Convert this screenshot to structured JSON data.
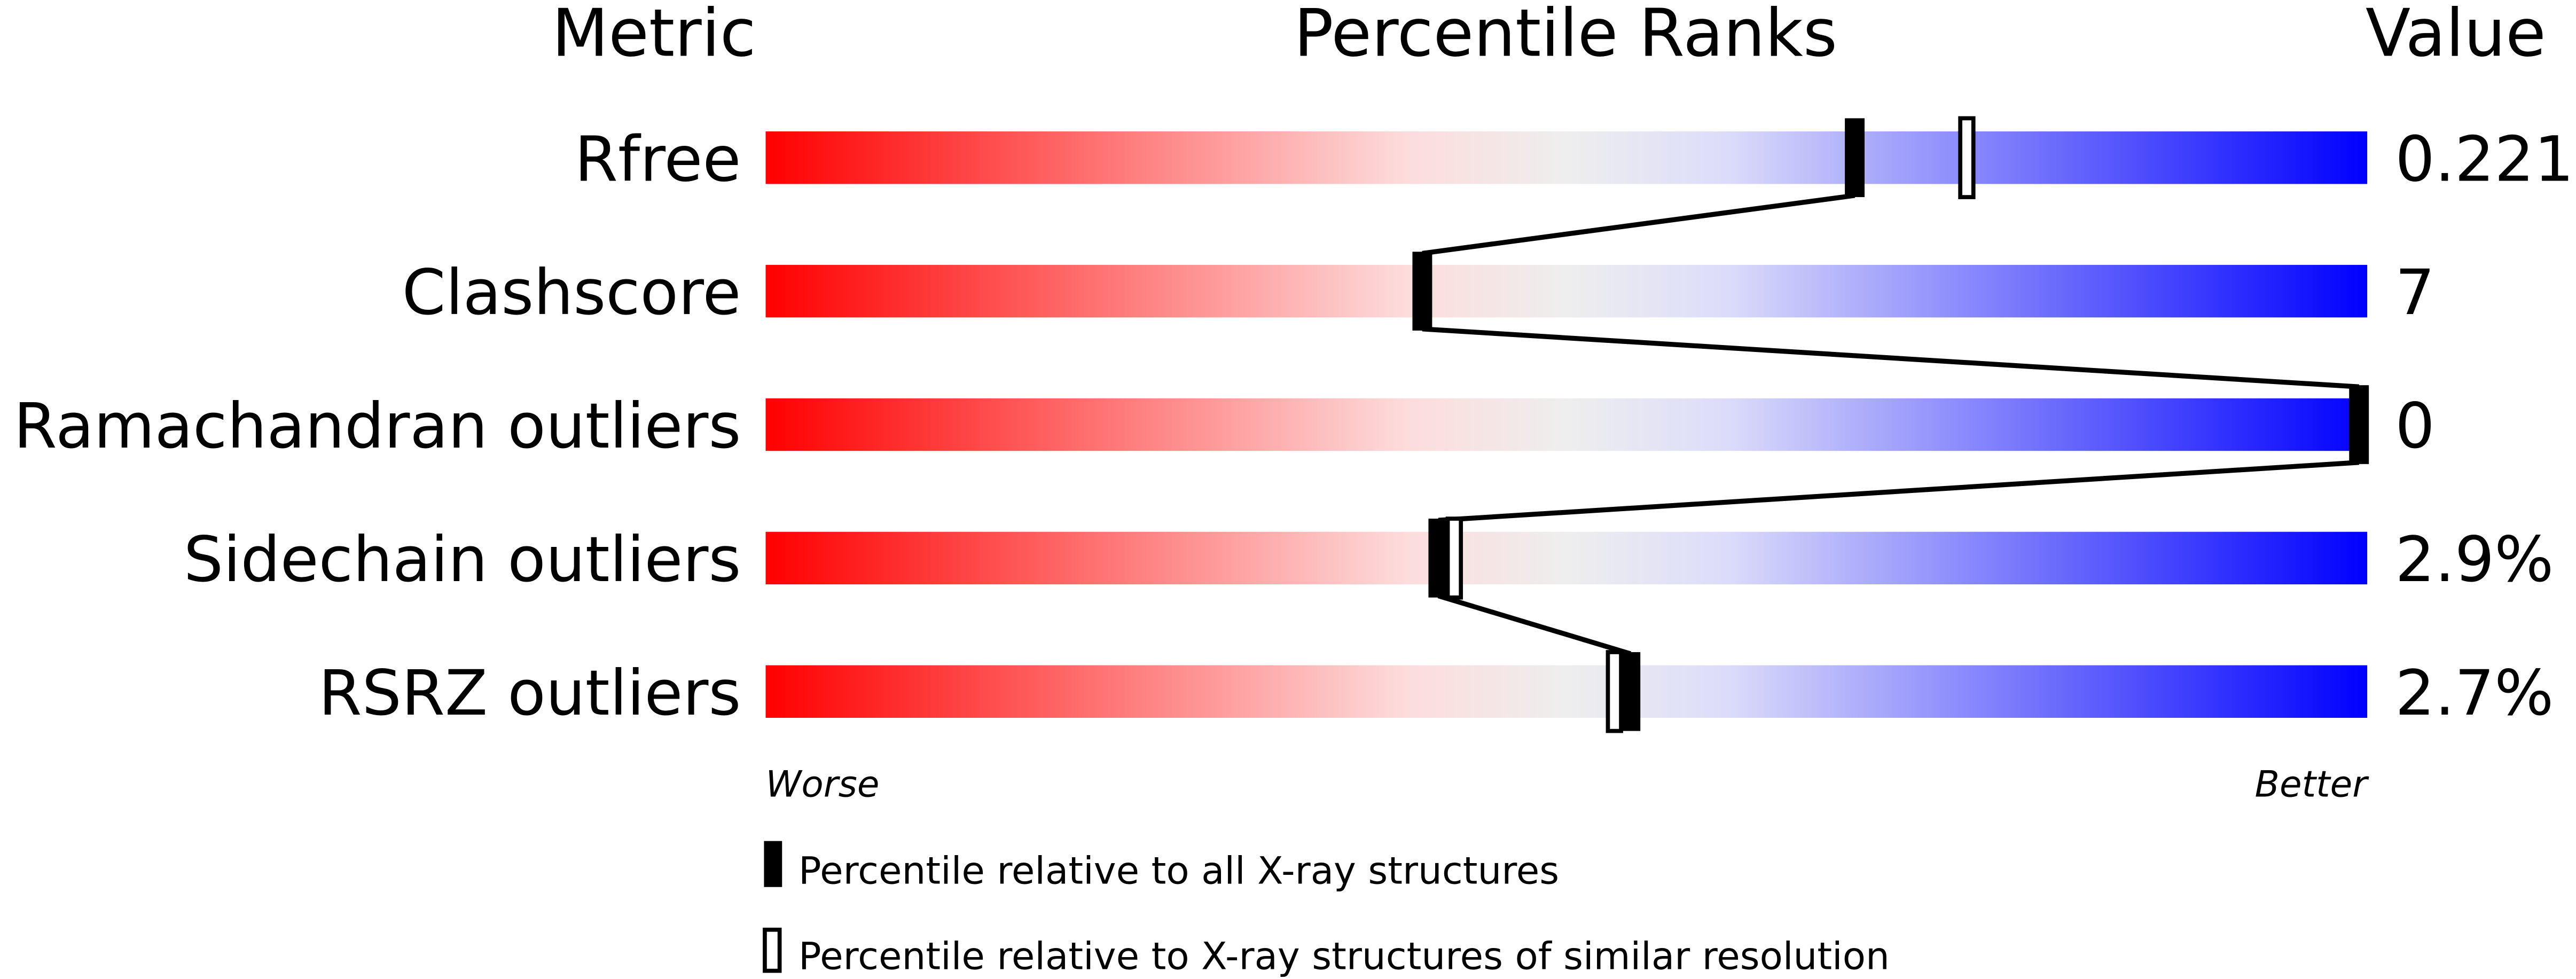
{
  "chart_data": {
    "type": "percentile-ranks",
    "headers": {
      "metric": "Metric",
      "ranks": "Percentile Ranks",
      "value": "Value"
    },
    "xlim": [
      0,
      100
    ],
    "axis_labels": {
      "left": "Worse",
      "right": "Better"
    },
    "gradient_colors": [
      "#ff0000",
      "#fddcdc",
      "#eeeeee",
      "#dcdcfa",
      "#0000ff"
    ],
    "rows": [
      {
        "metric": "Rfree",
        "value": "0.221",
        "percentile_all": 68,
        "percentile_similar": 75
      },
      {
        "metric": "Clashscore",
        "value": "7",
        "percentile_all": 41,
        "percentile_similar": null
      },
      {
        "metric": "Ramachandran outliers",
        "value": "0",
        "percentile_all": 100,
        "percentile_similar": null
      },
      {
        "metric": "Sidechain outliers",
        "value": "2.9%",
        "percentile_all": 42,
        "percentile_similar": 43
      },
      {
        "metric": "RSRZ outliers",
        "value": "2.7%",
        "percentile_all": 54,
        "percentile_similar": 53
      }
    ],
    "legend": [
      {
        "marker": "filled",
        "label": "Percentile relative to all X-ray structures"
      },
      {
        "marker": "outline",
        "label": "Percentile relative to X-ray structures of similar resolution"
      }
    ]
  }
}
